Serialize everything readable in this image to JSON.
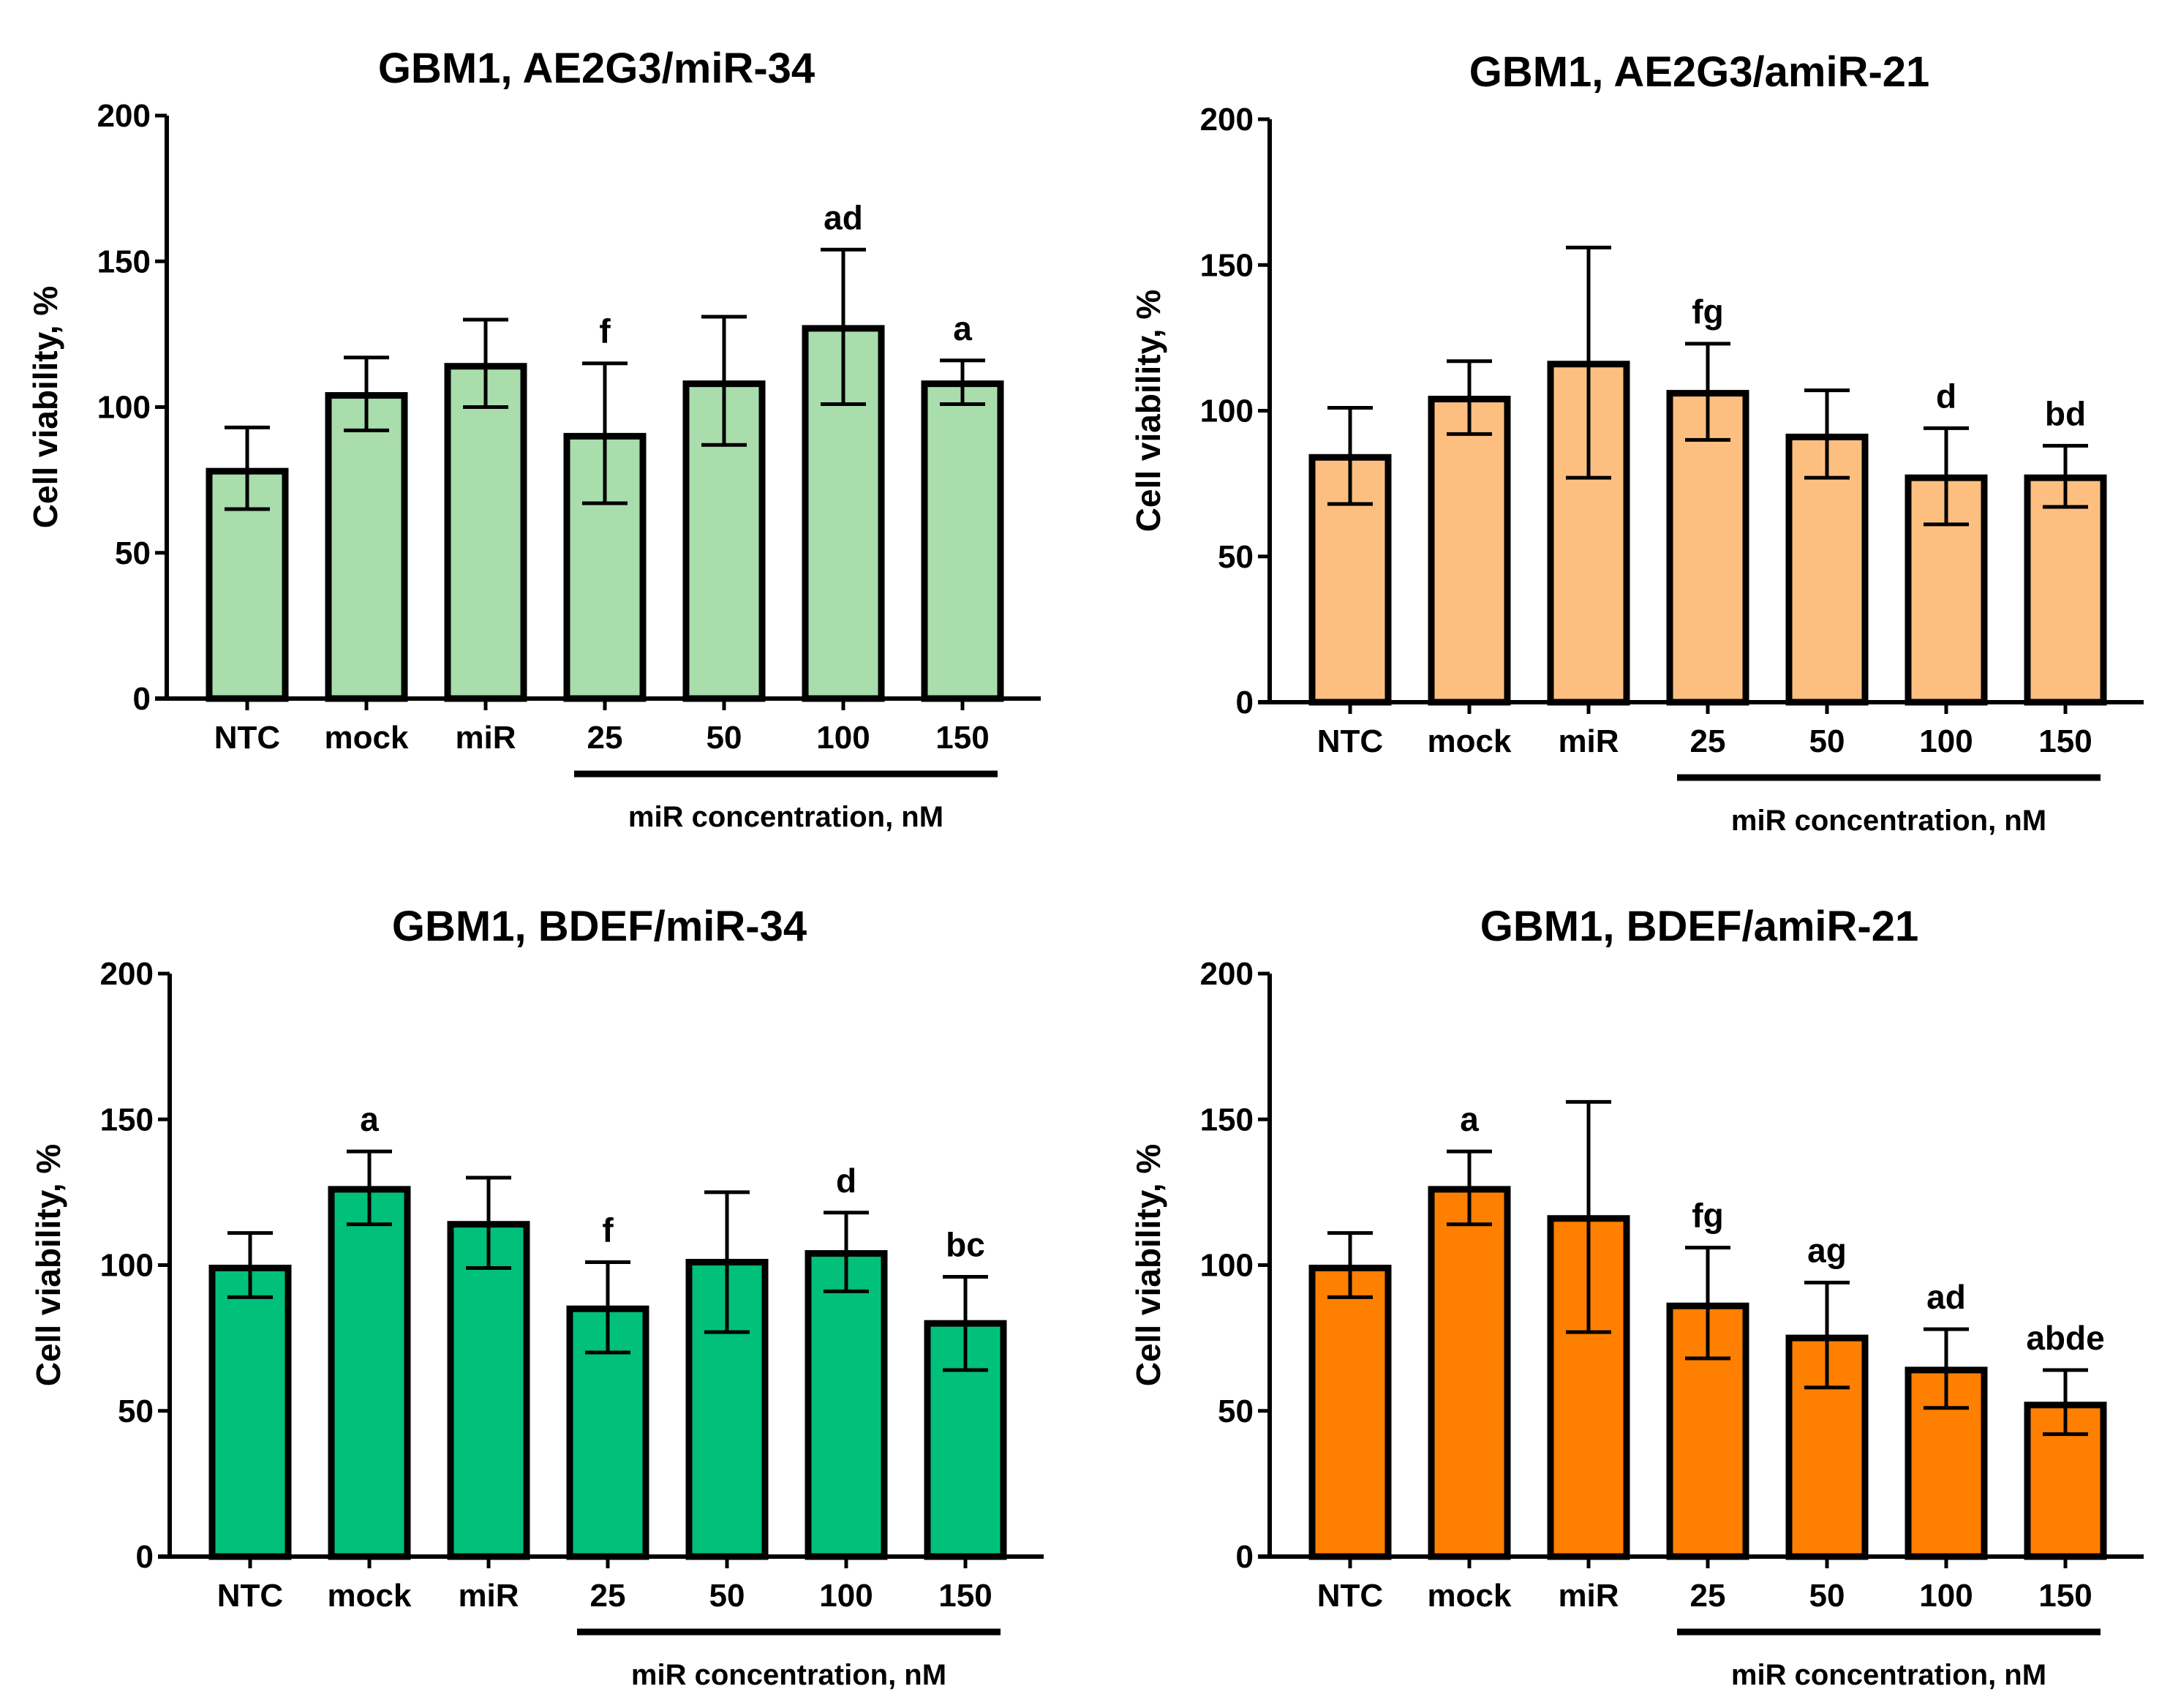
{
  "chart_data": [
    {
      "type": "bar",
      "title": "GBM1, AE2G3/miR-34",
      "ylabel": "Cell viability, %",
      "xlabel": "miR concentration, nM",
      "ylim": [
        0,
        200
      ],
      "yticks": [
        "0",
        "50",
        "100",
        "150",
        "200"
      ],
      "categories": [
        "NTC",
        "mock",
        "miR",
        "25",
        "50",
        "100",
        "150"
      ],
      "values": [
        78,
        104,
        114,
        90,
        108,
        127,
        108
      ],
      "err_low": [
        65,
        92,
        100,
        67,
        87,
        101,
        101
      ],
      "err_high": [
        93,
        117,
        130,
        115,
        131,
        154,
        116
      ],
      "annotations": [
        "",
        "",
        "",
        "f",
        "",
        "ad",
        "a"
      ],
      "color": "#a9ddac",
      "grid": false
    },
    {
      "type": "bar",
      "title": "GBM1, AE2G3/amiR-21",
      "ylabel": "Cell viability, %",
      "xlabel": "miR concentration, nM",
      "ylim": [
        0,
        200
      ],
      "yticks": [
        "0",
        "50",
        "100",
        "150",
        "200"
      ],
      "categories": [
        "NTC",
        "mock",
        "miR",
        "25",
        "50",
        "100",
        "150"
      ],
      "values": [
        84,
        104,
        116,
        106,
        91,
        77,
        77
      ],
      "err_low": [
        68,
        92,
        77,
        90,
        77,
        61,
        67
      ],
      "err_high": [
        101,
        117,
        156,
        123,
        107,
        94,
        88
      ],
      "annotations": [
        "",
        "",
        "",
        "fg",
        "",
        "d",
        "bd"
      ],
      "color": "#fdbf80",
      "grid": false
    },
    {
      "type": "bar",
      "title": "GBM1, BDEF/miR-34",
      "ylabel": "Cell viability, %",
      "xlabel": "miR concentration, nM",
      "ylim": [
        0,
        200
      ],
      "yticks": [
        "0",
        "50",
        "100",
        "150",
        "200"
      ],
      "categories": [
        "NTC",
        "mock",
        "miR",
        "25",
        "50",
        "100",
        "150"
      ],
      "values": [
        99,
        126,
        114,
        85,
        101,
        104,
        80
      ],
      "err_low": [
        89,
        114,
        99,
        70,
        77,
        91,
        64
      ],
      "err_high": [
        111,
        139,
        130,
        101,
        125,
        118,
        96
      ],
      "annotations": [
        "",
        "a",
        "",
        "f",
        "",
        "d",
        "bc"
      ],
      "color": "#00c07a",
      "grid": false
    },
    {
      "type": "bar",
      "title": "GBM1, BDEF/amiR-21",
      "ylabel": "Cell viability, %",
      "xlabel": "miR concentration, nM",
      "ylim": [
        0,
        200
      ],
      "yticks": [
        "0",
        "50",
        "100",
        "150",
        "200"
      ],
      "categories": [
        "NTC",
        "mock",
        "miR",
        "25",
        "50",
        "100",
        "150"
      ],
      "values": [
        99,
        126,
        116,
        86,
        75,
        64,
        52
      ],
      "err_low": [
        89,
        114,
        77,
        68,
        58,
        51,
        42
      ],
      "err_high": [
        111,
        139,
        156,
        106,
        94,
        78,
        64
      ],
      "annotations": [
        "",
        "a",
        "",
        "fg",
        "ag",
        "ad",
        "abde"
      ],
      "color": "#ff7f00",
      "grid": false
    }
  ]
}
